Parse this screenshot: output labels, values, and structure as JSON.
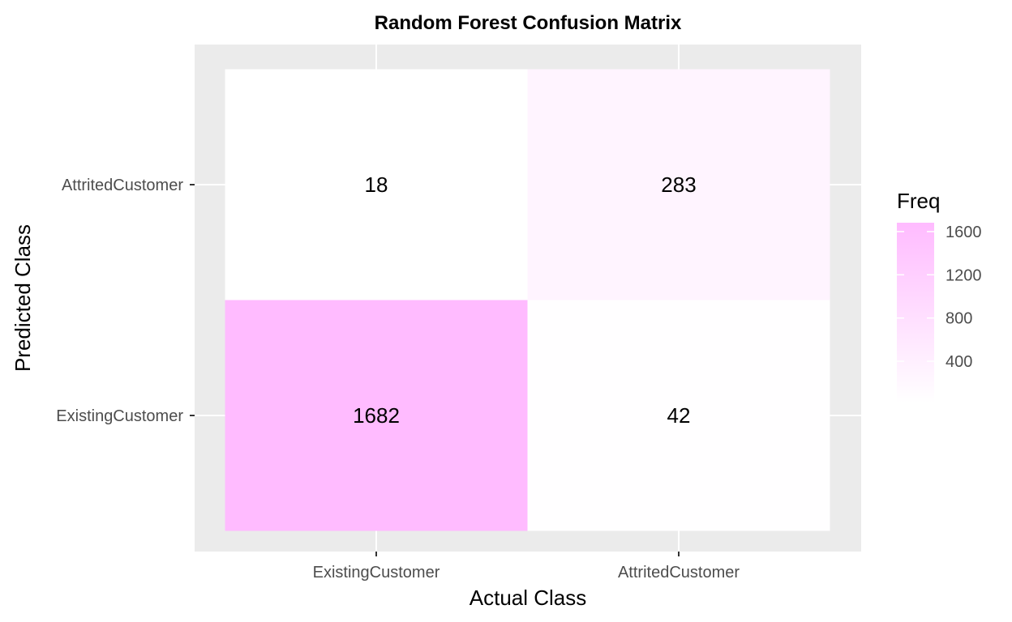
{
  "chart_data": {
    "type": "heatmap",
    "title": "Random Forest Confusion Matrix",
    "xlabel": "Actual Class",
    "ylabel": "Predicted Class",
    "x_categories": [
      "ExistingCustomer",
      "AttritedCustomer"
    ],
    "y_categories": [
      "ExistingCustomer",
      "AttritedCustomer"
    ],
    "cells": [
      {
        "x": "ExistingCustomer",
        "y": "AttritedCustomer",
        "value": 18
      },
      {
        "x": "AttritedCustomer",
        "y": "AttritedCustomer",
        "value": 283
      },
      {
        "x": "ExistingCustomer",
        "y": "ExistingCustomer",
        "value": 1682
      },
      {
        "x": "AttritedCustomer",
        "y": "ExistingCustomer",
        "value": 42
      }
    ],
    "legend": {
      "title": "Freq",
      "ticks": [
        400,
        800,
        1200,
        1600
      ],
      "range": [
        18,
        1682
      ],
      "color_low": "#ffffff",
      "color_high": "#ffbbff",
      "placement": "right"
    },
    "panel_background": "#ebebeb",
    "grid": true
  }
}
